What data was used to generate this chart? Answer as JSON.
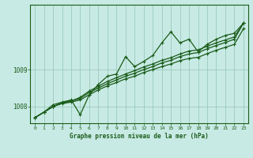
{
  "xlabel": "Graphe pression niveau de la mer (hPa)",
  "background_color": "#c8eae4",
  "grid_color": "#99ccbb",
  "line_color": "#1a5c1a",
  "x_ticks": [
    0,
    1,
    2,
    3,
    4,
    5,
    6,
    7,
    8,
    9,
    10,
    11,
    12,
    13,
    14,
    15,
    16,
    17,
    18,
    19,
    20,
    21,
    22,
    23
  ],
  "ylim": [
    1007.55,
    1010.75
  ],
  "yticks": [
    1008,
    1009
  ],
  "line_jagged": [
    1007.7,
    1007.85,
    1008.05,
    1008.12,
    1008.18,
    1007.78,
    1008.32,
    1008.6,
    1008.82,
    1008.88,
    1009.35,
    1009.08,
    1009.22,
    1009.38,
    1009.72,
    1010.02,
    1009.72,
    1009.82,
    1009.48,
    1009.68,
    1009.82,
    1009.92,
    1009.98,
    1010.25
  ],
  "line_smooth1": [
    1007.7,
    1007.85,
    1008.0,
    1008.1,
    1008.15,
    1008.22,
    1008.38,
    1008.5,
    1008.62,
    1008.72,
    1008.82,
    1008.9,
    1009.0,
    1009.08,
    1009.18,
    1009.25,
    1009.35,
    1009.42,
    1009.46,
    1009.56,
    1009.65,
    1009.73,
    1009.82,
    1010.25
  ],
  "line_smooth2": [
    1007.7,
    1007.85,
    1008.0,
    1008.1,
    1008.15,
    1008.25,
    1008.42,
    1008.55,
    1008.68,
    1008.78,
    1008.88,
    1008.97,
    1009.07,
    1009.15,
    1009.25,
    1009.32,
    1009.42,
    1009.5,
    1009.53,
    1009.63,
    1009.72,
    1009.8,
    1009.88,
    1010.25
  ],
  "line_smooth3": [
    1007.7,
    1007.85,
    1008.0,
    1008.08,
    1008.12,
    1008.18,
    1008.32,
    1008.45,
    1008.56,
    1008.65,
    1008.75,
    1008.82,
    1008.92,
    1009.0,
    1009.08,
    1009.15,
    1009.24,
    1009.3,
    1009.33,
    1009.43,
    1009.52,
    1009.6,
    1009.68,
    1010.1
  ]
}
